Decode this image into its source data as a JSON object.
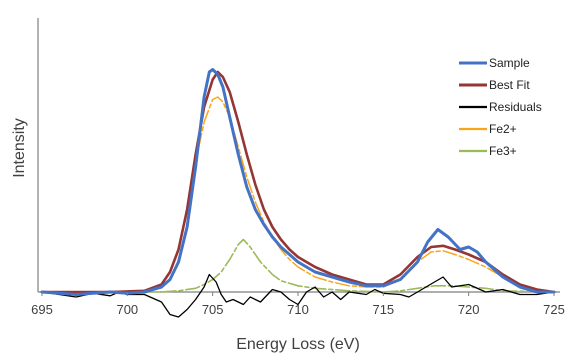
{
  "chart_data": {
    "type": "line",
    "title": "",
    "xlabel": "Energy Loss (eV)",
    "ylabel": "Intensity",
    "xlim": [
      695,
      725
    ],
    "ylim": [
      -0.1,
      1.0
    ],
    "x_ticks": [
      "695",
      "700",
      "705",
      "710",
      "715",
      "720",
      "725"
    ],
    "grid": false,
    "legend_position": "right",
    "series": [
      {
        "name": "Sample",
        "color": "#4472c4",
        "dash": "solid",
        "points": [
          [
            695,
            0.0
          ],
          [
            697,
            -0.01
          ],
          [
            699,
            0.0
          ],
          [
            700,
            -0.005
          ],
          [
            701,
            0.0
          ],
          [
            702,
            0.02
          ],
          [
            702.5,
            0.05
          ],
          [
            703,
            0.12
          ],
          [
            703.5,
            0.26
          ],
          [
            704,
            0.5
          ],
          [
            704.5,
            0.78
          ],
          [
            704.8,
            0.88
          ],
          [
            705,
            0.89
          ],
          [
            705.3,
            0.87
          ],
          [
            705.6,
            0.82
          ],
          [
            706,
            0.7
          ],
          [
            706.5,
            0.55
          ],
          [
            707,
            0.42
          ],
          [
            707.5,
            0.33
          ],
          [
            708,
            0.27
          ],
          [
            708.5,
            0.22
          ],
          [
            709,
            0.18
          ],
          [
            709.5,
            0.15
          ],
          [
            710,
            0.12
          ],
          [
            710.5,
            0.1
          ],
          [
            711,
            0.08
          ],
          [
            712,
            0.06
          ],
          [
            713,
            0.04
          ],
          [
            714,
            0.025
          ],
          [
            715,
            0.025
          ],
          [
            716,
            0.05
          ],
          [
            717,
            0.12
          ],
          [
            717.6,
            0.2
          ],
          [
            718.2,
            0.25
          ],
          [
            718.8,
            0.22
          ],
          [
            719.5,
            0.17
          ],
          [
            720,
            0.18
          ],
          [
            720.5,
            0.16
          ],
          [
            721,
            0.12
          ],
          [
            722,
            0.06
          ],
          [
            723,
            0.02
          ],
          [
            724,
            0.0
          ],
          [
            725,
            0.0
          ]
        ]
      },
      {
        "name": "Best Fit",
        "color": "#943634",
        "dash": "solid",
        "points": [
          [
            695,
            0.0
          ],
          [
            699,
            0.0
          ],
          [
            701,
            0.005
          ],
          [
            702,
            0.03
          ],
          [
            702.5,
            0.08
          ],
          [
            703,
            0.17
          ],
          [
            703.5,
            0.33
          ],
          [
            704,
            0.55
          ],
          [
            704.5,
            0.74
          ],
          [
            705,
            0.85
          ],
          [
            705.3,
            0.88
          ],
          [
            705.6,
            0.86
          ],
          [
            706,
            0.8
          ],
          [
            706.5,
            0.68
          ],
          [
            707,
            0.55
          ],
          [
            707.5,
            0.43
          ],
          [
            708,
            0.33
          ],
          [
            708.5,
            0.26
          ],
          [
            709,
            0.21
          ],
          [
            709.5,
            0.17
          ],
          [
            710,
            0.14
          ],
          [
            710.5,
            0.12
          ],
          [
            711,
            0.1
          ],
          [
            712,
            0.07
          ],
          [
            713,
            0.05
          ],
          [
            714,
            0.03
          ],
          [
            715,
            0.03
          ],
          [
            716,
            0.07
          ],
          [
            717,
            0.14
          ],
          [
            717.8,
            0.18
          ],
          [
            718.5,
            0.185
          ],
          [
            719.2,
            0.17
          ],
          [
            720,
            0.15
          ],
          [
            721,
            0.12
          ],
          [
            722,
            0.07
          ],
          [
            723,
            0.03
          ],
          [
            724,
            0.01
          ],
          [
            725,
            0.0
          ]
        ]
      },
      {
        "name": "Residuals",
        "color": "#000000",
        "dash": "solid",
        "points": [
          [
            695,
            0.0
          ],
          [
            696,
            -0.01
          ],
          [
            697,
            -0.02
          ],
          [
            698,
            -0.005
          ],
          [
            699,
            -0.015
          ],
          [
            699.5,
            0.0
          ],
          [
            700,
            -0.01
          ],
          [
            701,
            -0.01
          ],
          [
            702,
            -0.04
          ],
          [
            702.5,
            -0.09
          ],
          [
            703,
            -0.1
          ],
          [
            703.5,
            -0.07
          ],
          [
            704,
            -0.03
          ],
          [
            704.5,
            0.02
          ],
          [
            704.8,
            0.07
          ],
          [
            705.2,
            0.04
          ],
          [
            705.5,
            -0.01
          ],
          [
            705.8,
            -0.04
          ],
          [
            706.2,
            -0.03
          ],
          [
            706.8,
            -0.05
          ],
          [
            707.2,
            -0.02
          ],
          [
            707.8,
            -0.04
          ],
          [
            708.5,
            0.01
          ],
          [
            709,
            0.0
          ],
          [
            709.5,
            -0.03
          ],
          [
            710,
            -0.05
          ],
          [
            710.5,
            0.0
          ],
          [
            711,
            0.02
          ],
          [
            711.5,
            -0.02
          ],
          [
            712,
            0.0
          ],
          [
            712.5,
            -0.03
          ],
          [
            713,
            0.0
          ],
          [
            714,
            -0.01
          ],
          [
            714.5,
            0.01
          ],
          [
            715,
            -0.005
          ],
          [
            716,
            -0.01
          ],
          [
            716.5,
            -0.02
          ],
          [
            717,
            0.0
          ],
          [
            718,
            0.04
          ],
          [
            718.5,
            0.06
          ],
          [
            719,
            0.02
          ],
          [
            720,
            0.03
          ],
          [
            721,
            0.0
          ],
          [
            722,
            0.01
          ],
          [
            723,
            -0.01
          ],
          [
            724,
            -0.01
          ],
          [
            725,
            0.0
          ]
        ]
      },
      {
        "name": "Fe2+",
        "color": "#f9a51a",
        "dash": "long-dash",
        "points": [
          [
            695,
            0.0
          ],
          [
            699,
            0.0
          ],
          [
            701,
            0.005
          ],
          [
            702,
            0.03
          ],
          [
            702.5,
            0.08
          ],
          [
            703,
            0.17
          ],
          [
            703.5,
            0.32
          ],
          [
            704,
            0.52
          ],
          [
            704.5,
            0.68
          ],
          [
            705,
            0.77
          ],
          [
            705.3,
            0.78
          ],
          [
            705.6,
            0.76
          ],
          [
            706,
            0.7
          ],
          [
            706.5,
            0.58
          ],
          [
            707,
            0.46
          ],
          [
            707.5,
            0.36
          ],
          [
            708,
            0.28
          ],
          [
            708.5,
            0.22
          ],
          [
            709,
            0.17
          ],
          [
            709.5,
            0.13
          ],
          [
            710,
            0.1
          ],
          [
            710.5,
            0.08
          ],
          [
            711,
            0.06
          ],
          [
            712,
            0.04
          ],
          [
            713,
            0.025
          ],
          [
            714,
            0.02
          ],
          [
            715,
            0.02
          ],
          [
            716,
            0.05
          ],
          [
            717,
            0.12
          ],
          [
            717.8,
            0.16
          ],
          [
            718.5,
            0.165
          ],
          [
            719.2,
            0.15
          ],
          [
            720,
            0.13
          ],
          [
            721,
            0.1
          ],
          [
            722,
            0.06
          ],
          [
            723,
            0.025
          ],
          [
            724,
            0.01
          ],
          [
            725,
            0.0
          ]
        ]
      },
      {
        "name": "Fe3+",
        "color": "#9bbb59",
        "dash": "long-dash",
        "points": [
          [
            695,
            0.0
          ],
          [
            702,
            0.0
          ],
          [
            703,
            0.005
          ],
          [
            704,
            0.015
          ],
          [
            704.5,
            0.03
          ],
          [
            705,
            0.05
          ],
          [
            705.5,
            0.08
          ],
          [
            706,
            0.13
          ],
          [
            706.5,
            0.19
          ],
          [
            706.8,
            0.21
          ],
          [
            707.2,
            0.18
          ],
          [
            707.8,
            0.12
          ],
          [
            708.5,
            0.07
          ],
          [
            709,
            0.045
          ],
          [
            710,
            0.025
          ],
          [
            711,
            0.015
          ],
          [
            713,
            0.005
          ],
          [
            715,
            0.0
          ],
          [
            716,
            0.005
          ],
          [
            717,
            0.015
          ],
          [
            718,
            0.025
          ],
          [
            719,
            0.025
          ],
          [
            720,
            0.02
          ],
          [
            721,
            0.015
          ],
          [
            722,
            0.005
          ],
          [
            725,
            0.0
          ]
        ]
      }
    ]
  }
}
